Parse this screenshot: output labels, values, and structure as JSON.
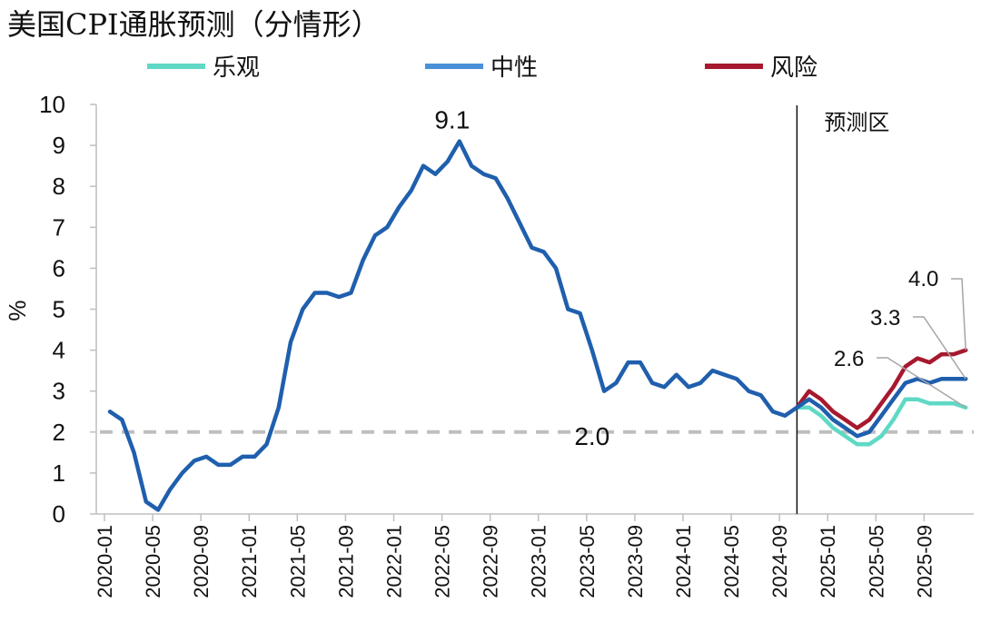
{
  "chart_data": {
    "type": "line",
    "title": "美国CPI通胀预测（分情形）",
    "ylabel": "%",
    "xlabel": "",
    "ylim": [
      0,
      10
    ],
    "yticks": [
      "0",
      "1",
      "2",
      "3",
      "4",
      "5",
      "6",
      "7",
      "8",
      "9",
      "10"
    ],
    "x_start": "2020-01",
    "x_end": "2025-12",
    "xticks": [
      "2020-01",
      "2020-05",
      "2020-09",
      "2021-01",
      "2021-05",
      "2021-09",
      "2022-01",
      "2022-05",
      "2022-09",
      "2023-01",
      "2023-05",
      "2023-09",
      "2024-01",
      "2024-05",
      "2024-09",
      "2025-01",
      "2025-05",
      "2025-09"
    ],
    "xtick_index": [
      0,
      4,
      8,
      12,
      16,
      20,
      24,
      28,
      32,
      36,
      40,
      44,
      48,
      52,
      56,
      60,
      64,
      68
    ],
    "forecast_start_index": 57,
    "forecast_label": "预测区",
    "reference_line": {
      "value": 2.0,
      "label": "2.0",
      "color": "#bfbfbf"
    },
    "legend": [
      "乐观",
      "中性",
      "风险"
    ],
    "historical": {
      "name": "中性",
      "color": "#1f5fad",
      "values": [
        2.5,
        2.3,
        1.5,
        0.3,
        0.1,
        0.6,
        1.0,
        1.3,
        1.4,
        1.2,
        1.2,
        1.4,
        1.4,
        1.7,
        2.6,
        4.2,
        5.0,
        5.4,
        5.4,
        5.3,
        5.4,
        6.2,
        6.8,
        7.0,
        7.5,
        7.9,
        8.5,
        8.3,
        8.6,
        9.1,
        8.5,
        8.3,
        8.2,
        7.7,
        7.1,
        6.5,
        6.4,
        6.0,
        5.0,
        4.9,
        4.0,
        3.0,
        3.2,
        3.7,
        3.7,
        3.2,
        3.1,
        3.4,
        3.1,
        3.2,
        3.5,
        3.4,
        3.3,
        3.0,
        2.9,
        2.5,
        2.4,
        2.6
      ]
    },
    "series": [
      {
        "name": "乐观",
        "color": "#5fd9c5",
        "start_index": 57,
        "values": [
          2.6,
          2.6,
          2.4,
          2.1,
          1.9,
          1.7,
          1.7,
          1.9,
          2.3,
          2.8,
          2.8,
          2.7,
          2.7,
          2.7,
          2.6
        ]
      },
      {
        "name": "中性",
        "color": "#1f5fad",
        "start_index": 57,
        "values": [
          2.6,
          2.8,
          2.6,
          2.3,
          2.1,
          1.9,
          2.0,
          2.4,
          2.8,
          3.2,
          3.3,
          3.2,
          3.3,
          3.3,
          3.3
        ]
      },
      {
        "name": "风险",
        "color": "#a6192e",
        "start_index": 57,
        "values": [
          2.6,
          3.0,
          2.8,
          2.5,
          2.3,
          2.1,
          2.3,
          2.7,
          3.1,
          3.6,
          3.8,
          3.7,
          3.9,
          3.9,
          4.0
        ]
      }
    ],
    "annotations": [
      {
        "text": "9.1",
        "index": 29,
        "value": 9.1
      },
      {
        "text": "2.0",
        "index": 40,
        "value": 2.0
      },
      {
        "text": "2.6",
        "series": "乐观"
      },
      {
        "text": "3.3",
        "series": "中性"
      },
      {
        "text": "4.0",
        "series": "风险"
      }
    ]
  }
}
